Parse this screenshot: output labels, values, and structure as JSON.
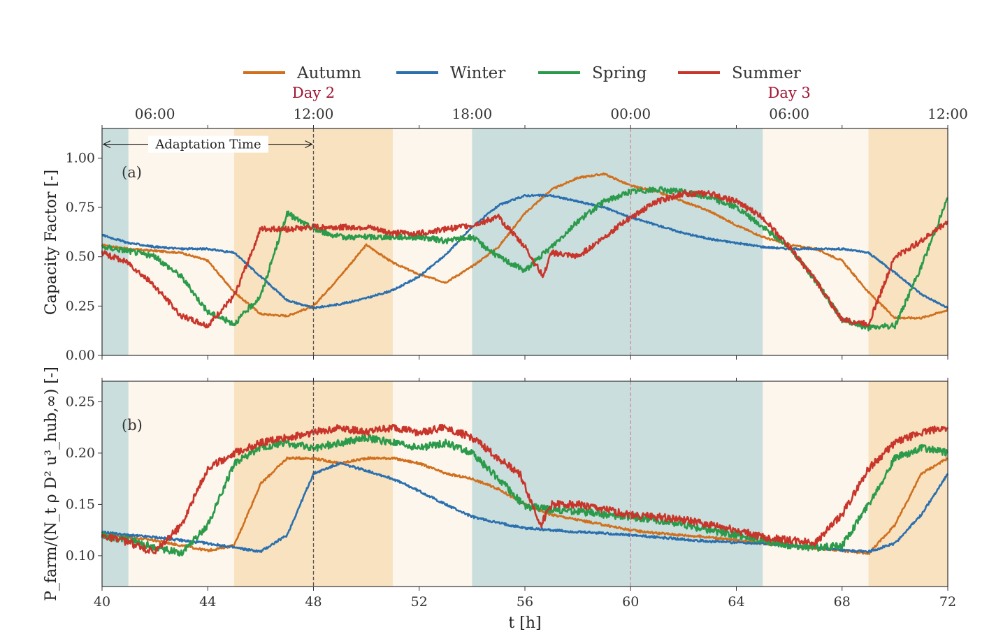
{
  "colors": {
    "autumn": "#d0701e",
    "winter": "#2a6fae",
    "spring": "#2b9a4a",
    "summer": "#c8352b",
    "night_shade": "#c9dedd",
    "day_shade": "#fdf6ec",
    "peak_shade": "#f8e2c0",
    "day_label": "#a01533"
  },
  "legend": {
    "autumn": "Autumn",
    "winter": "Winter",
    "spring": "Spring",
    "summer": "Summer"
  },
  "top_axis": {
    "ticks": [
      {
        "x": 41,
        "label": "06:00"
      },
      {
        "x": 47,
        "label": "12:00"
      },
      {
        "x": 53,
        "label": "18:00"
      },
      {
        "x": 59,
        "label": "00:00"
      },
      {
        "x": 65,
        "label": "06:00"
      },
      {
        "x": 71,
        "label": "12:00"
      }
    ],
    "day_labels": [
      {
        "x": 47,
        "label": "Day 2"
      },
      {
        "x": 65,
        "label": "Day 3"
      }
    ]
  },
  "annotation": {
    "text": "Adaptation Time",
    "x_start": 40,
    "x_end": 48,
    "y": 1.07
  },
  "chart_data": [
    {
      "type": "line",
      "panel": "(a)",
      "ylabel": "Capacity Factor [-]",
      "xlabel": "",
      "xlim": [
        40,
        72
      ],
      "ylim": [
        0,
        1.15
      ],
      "yticks": [
        0.0,
        0.25,
        0.5,
        0.75,
        1.0
      ],
      "ytick_labels": [
        "0.00",
        "0.25",
        "0.50",
        "0.75",
        "1.00"
      ],
      "xticks": [
        40,
        44,
        48,
        52,
        56,
        60,
        64,
        68,
        72
      ],
      "xtick_labels": [
        "",
        "",
        "",
        "",
        "",
        "",
        "",
        "",
        ""
      ],
      "vlines": [
        {
          "x": 48,
          "style": "black"
        },
        {
          "x": 60,
          "style": "red"
        }
      ],
      "series": [
        {
          "name": "Autumn",
          "x": [
            40,
            41,
            42,
            43,
            44,
            45,
            46,
            47,
            48,
            49,
            50,
            51,
            52,
            53,
            54,
            55,
            56,
            57,
            58,
            59,
            60,
            61,
            62,
            63,
            64,
            65,
            66,
            67,
            68,
            69,
            70,
            71,
            72
          ],
          "y": [
            0.56,
            0.54,
            0.53,
            0.52,
            0.48,
            0.32,
            0.21,
            0.2,
            0.25,
            0.4,
            0.56,
            0.47,
            0.41,
            0.37,
            0.45,
            0.55,
            0.72,
            0.84,
            0.9,
            0.92,
            0.86,
            0.83,
            0.78,
            0.73,
            0.66,
            0.6,
            0.56,
            0.54,
            0.48,
            0.32,
            0.19,
            0.19,
            0.23
          ]
        },
        {
          "name": "Winter",
          "x": [
            40,
            41,
            42,
            43,
            44,
            45,
            46,
            47,
            48,
            49,
            50,
            51,
            52,
            53,
            54,
            55,
            56,
            57,
            58,
            59,
            60,
            61,
            62,
            63,
            64,
            65,
            66,
            67,
            68,
            69,
            70,
            71,
            72
          ],
          "y": [
            0.61,
            0.57,
            0.55,
            0.54,
            0.54,
            0.52,
            0.4,
            0.28,
            0.24,
            0.26,
            0.29,
            0.33,
            0.4,
            0.51,
            0.65,
            0.76,
            0.81,
            0.81,
            0.78,
            0.75,
            0.7,
            0.66,
            0.62,
            0.59,
            0.57,
            0.55,
            0.54,
            0.54,
            0.54,
            0.52,
            0.42,
            0.31,
            0.24
          ]
        },
        {
          "name": "Spring",
          "x": [
            40,
            41,
            42,
            43,
            44,
            45,
            46,
            47,
            48,
            49,
            50,
            51,
            52,
            53,
            54,
            55,
            56,
            57,
            58,
            59,
            60,
            61,
            62,
            63,
            64,
            65,
            66,
            67,
            68,
            69,
            70,
            71,
            72
          ],
          "y": [
            0.55,
            0.53,
            0.5,
            0.4,
            0.22,
            0.16,
            0.3,
            0.72,
            0.64,
            0.6,
            0.6,
            0.6,
            0.6,
            0.58,
            0.6,
            0.5,
            0.43,
            0.55,
            0.68,
            0.78,
            0.83,
            0.84,
            0.83,
            0.8,
            0.75,
            0.65,
            0.55,
            0.38,
            0.18,
            0.14,
            0.15,
            0.45,
            0.8
          ]
        },
        {
          "name": "Summer",
          "x": [
            40,
            41,
            42,
            43,
            44,
            45,
            46,
            47,
            48,
            49,
            50,
            51,
            52,
            53,
            54,
            55,
            56,
            56.7,
            57,
            58,
            59,
            60,
            61,
            62,
            63,
            64,
            65,
            66,
            67,
            68,
            69,
            70,
            71,
            72
          ],
          "y": [
            0.52,
            0.47,
            0.35,
            0.2,
            0.15,
            0.3,
            0.64,
            0.64,
            0.65,
            0.65,
            0.65,
            0.62,
            0.62,
            0.64,
            0.66,
            0.7,
            0.55,
            0.4,
            0.52,
            0.5,
            0.6,
            0.7,
            0.78,
            0.82,
            0.82,
            0.78,
            0.7,
            0.55,
            0.38,
            0.18,
            0.16,
            0.5,
            0.58,
            0.68
          ]
        }
      ]
    },
    {
      "type": "line",
      "panel": "(b)",
      "ylabel": "P_farm/(N_t ρ D² u³_hub,∞) [-]",
      "xlabel": "t [h]",
      "xlim": [
        40,
        72
      ],
      "ylim": [
        0.07,
        0.27
      ],
      "yticks": [
        0.1,
        0.15,
        0.2,
        0.25
      ],
      "ytick_labels": [
        "0.10",
        "0.15",
        "0.20",
        "0.25"
      ],
      "xticks": [
        40,
        44,
        48,
        52,
        56,
        60,
        64,
        68,
        72
      ],
      "xtick_labels": [
        "40",
        "44",
        "48",
        "52",
        "56",
        "60",
        "64",
        "68",
        "72"
      ],
      "vlines": [
        {
          "x": 48,
          "style": "black"
        },
        {
          "x": 60,
          "style": "red"
        }
      ],
      "series": [
        {
          "name": "Autumn",
          "x": [
            40,
            41,
            42,
            43,
            44,
            45,
            46,
            47,
            48,
            49,
            50,
            51,
            52,
            53,
            54,
            55,
            56,
            57,
            58,
            59,
            60,
            61,
            62,
            63,
            64,
            65,
            66,
            67,
            68,
            69,
            70,
            71,
            72
          ],
          "y": [
            0.12,
            0.118,
            0.115,
            0.11,
            0.105,
            0.11,
            0.17,
            0.195,
            0.195,
            0.19,
            0.195,
            0.195,
            0.19,
            0.18,
            0.175,
            0.165,
            0.15,
            0.14,
            0.135,
            0.13,
            0.125,
            0.122,
            0.12,
            0.118,
            0.115,
            0.112,
            0.11,
            0.107,
            0.105,
            0.102,
            0.13,
            0.18,
            0.195
          ]
        },
        {
          "name": "Winter",
          "x": [
            40,
            41,
            42,
            43,
            44,
            45,
            46,
            47,
            48,
            49,
            50,
            51,
            52,
            53,
            54,
            55,
            56,
            57,
            58,
            59,
            60,
            61,
            62,
            63,
            64,
            65,
            66,
            67,
            68,
            69,
            70,
            71,
            72
          ],
          "y": [
            0.123,
            0.12,
            0.118,
            0.115,
            0.112,
            0.108,
            0.104,
            0.12,
            0.18,
            0.19,
            0.183,
            0.175,
            0.163,
            0.15,
            0.138,
            0.132,
            0.127,
            0.125,
            0.123,
            0.122,
            0.12,
            0.118,
            0.116,
            0.114,
            0.113,
            0.112,
            0.11,
            0.108,
            0.105,
            0.104,
            0.112,
            0.14,
            0.18
          ]
        },
        {
          "name": "Spring",
          "x": [
            40,
            41,
            42,
            43,
            44,
            45,
            46,
            47,
            48,
            49,
            50,
            51,
            52,
            53,
            54,
            55,
            56,
            57,
            58,
            59,
            60,
            61,
            62,
            63,
            64,
            65,
            66,
            67,
            68,
            69,
            70,
            71,
            72
          ],
          "y": [
            0.12,
            0.115,
            0.108,
            0.103,
            0.13,
            0.19,
            0.205,
            0.21,
            0.205,
            0.21,
            0.215,
            0.21,
            0.205,
            0.21,
            0.2,
            0.175,
            0.148,
            0.145,
            0.143,
            0.14,
            0.138,
            0.135,
            0.13,
            0.125,
            0.12,
            0.115,
            0.11,
            0.108,
            0.11,
            0.15,
            0.195,
            0.205,
            0.2
          ]
        },
        {
          "name": "Summer",
          "x": [
            40,
            41,
            42,
            43,
            44,
            45,
            46,
            47,
            48,
            49,
            50,
            51,
            52,
            53,
            54,
            55,
            55.8,
            56.6,
            57,
            58,
            59,
            60,
            61,
            62,
            63,
            64,
            65,
            66,
            67,
            68,
            69,
            70,
            71,
            72
          ],
          "y": [
            0.12,
            0.113,
            0.103,
            0.13,
            0.185,
            0.2,
            0.21,
            0.215,
            0.22,
            0.225,
            0.22,
            0.225,
            0.22,
            0.225,
            0.215,
            0.195,
            0.18,
            0.13,
            0.15,
            0.15,
            0.145,
            0.14,
            0.138,
            0.135,
            0.13,
            0.125,
            0.118,
            0.115,
            0.113,
            0.14,
            0.185,
            0.21,
            0.22,
            0.225
          ]
        }
      ]
    }
  ]
}
